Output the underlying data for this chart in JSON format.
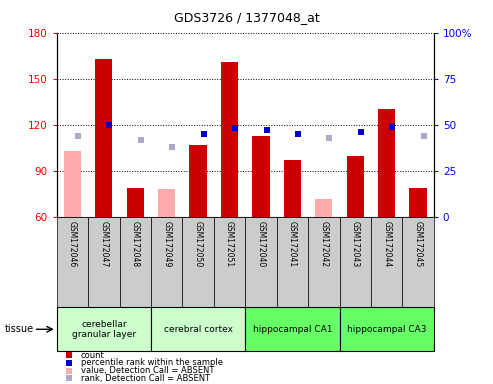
{
  "title": "GDS3726 / 1377048_at",
  "samples": [
    "GSM172046",
    "GSM172047",
    "GSM172048",
    "GSM172049",
    "GSM172050",
    "GSM172051",
    "GSM172040",
    "GSM172041",
    "GSM172042",
    "GSM172043",
    "GSM172044",
    "GSM172045"
  ],
  "count_values": [
    null,
    163,
    79,
    null,
    107,
    161,
    113,
    97,
    null,
    100,
    130,
    79
  ],
  "count_absent": [
    103,
    null,
    null,
    78,
    null,
    null,
    null,
    null,
    72,
    null,
    null,
    null
  ],
  "rank_values": [
    null,
    50,
    null,
    null,
    45,
    48,
    47,
    45,
    null,
    46,
    49,
    null
  ],
  "rank_absent": [
    44,
    null,
    42,
    38,
    null,
    null,
    null,
    null,
    43,
    null,
    null,
    44
  ],
  "tissues": [
    {
      "label": "cerebellar\ngranular layer",
      "start": 0,
      "end": 3,
      "color": "#ccffcc"
    },
    {
      "label": "cerebral cortex",
      "start": 3,
      "end": 6,
      "color": "#ccffcc"
    },
    {
      "label": "hippocampal CA1",
      "start": 6,
      "end": 9,
      "color": "#66ff66"
    },
    {
      "label": "hippocampal CA3",
      "start": 9,
      "end": 12,
      "color": "#66ff66"
    }
  ],
  "ylim_left": [
    60,
    180
  ],
  "ylim_right": [
    0,
    100
  ],
  "left_ticks": [
    60,
    90,
    120,
    150,
    180
  ],
  "right_ticks": [
    0,
    25,
    50,
    75,
    100
  ],
  "bar_color": "#cc0000",
  "bar_absent_color": "#ffaaaa",
  "rank_color": "#0000cc",
  "rank_absent_color": "#aaaacc",
  "sample_bg": "#cccccc",
  "background_color": "#ffffff"
}
